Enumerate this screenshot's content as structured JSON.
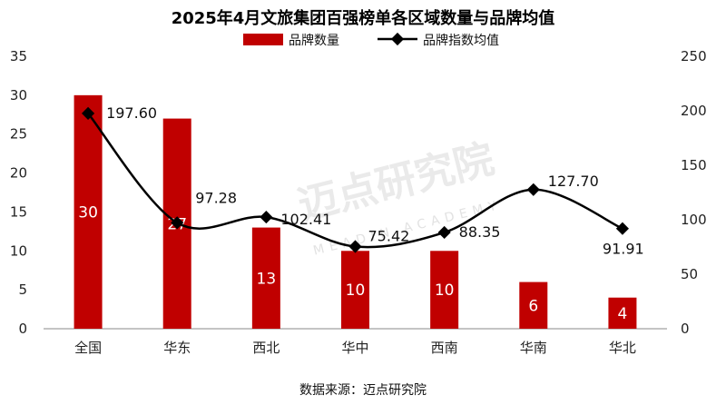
{
  "chart_data": {
    "type": "bar+line",
    "title": "2025年4月文旅集团百强榜单各区域数量与品牌均值",
    "categories": [
      "全国",
      "华东",
      "西北",
      "华中",
      "西南",
      "华南",
      "华北"
    ],
    "series": [
      {
        "name": "品牌数量",
        "kind": "bar",
        "axis": "left",
        "color": "#c00000",
        "values": [
          30,
          27,
          13,
          10,
          10,
          6,
          4
        ]
      },
      {
        "name": "品牌指数均值",
        "kind": "line",
        "axis": "right",
        "color": "#000000",
        "values": [
          197.6,
          97.28,
          102.41,
          75.42,
          88.35,
          127.7,
          91.91
        ],
        "labels": [
          "197.60",
          "97.28",
          "102.41",
          "75.42",
          "88.35",
          "127.70",
          "91.91"
        ]
      }
    ],
    "y_left": {
      "min": 0,
      "max": 35,
      "step": 5,
      "ticks": [
        "0",
        "5",
        "10",
        "15",
        "20",
        "25",
        "30",
        "35"
      ]
    },
    "y_right": {
      "min": 0,
      "max": 250,
      "step": 50,
      "ticks": [
        "0",
        "50",
        "100",
        "150",
        "200",
        "250"
      ]
    },
    "legend": {
      "position": "top-center",
      "items": [
        "品牌数量",
        "品牌指数均值"
      ]
    },
    "grid": false,
    "source": "数据来源：迈点研究院",
    "watermark": {
      "main": "迈点研究院",
      "sub": "MEADIN ACADEMY"
    }
  }
}
